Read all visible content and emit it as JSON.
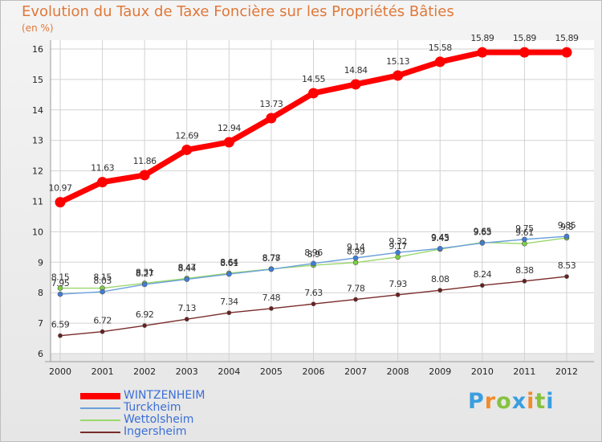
{
  "title": "Evolution du Taux de Taxe Foncière sur les Propriétés Bâties",
  "subtitle": "(en %)",
  "brand": {
    "text": "Proxiti"
  },
  "chart_data": {
    "type": "line",
    "title": "Evolution du Taux de Taxe Foncière sur les Propriétés Bâties",
    "ylabel": "(en %)",
    "xlabel": "",
    "categories": [
      "2000",
      "2001",
      "2002",
      "2003",
      "2004",
      "2005",
      "2006",
      "2007",
      "2008",
      "2009",
      "2010",
      "2011",
      "2012"
    ],
    "ylim": [
      6,
      16
    ],
    "yticks": [
      "6",
      "7",
      "8",
      "9",
      "10",
      "11",
      "12",
      "13",
      "14",
      "15",
      "16"
    ],
    "grid": true,
    "legend_position": "bottom-left",
    "series": [
      {
        "name": "WINTZENHEIM",
        "color": "#ff0000",
        "marker": "#ff0000",
        "values": [
          10.97,
          11.63,
          11.86,
          12.69,
          12.94,
          13.73,
          14.55,
          14.84,
          15.13,
          15.58,
          15.89,
          15.89,
          15.89
        ],
        "labels": [
          "10.97",
          "11.63",
          "11.86",
          "12.69",
          "12.94",
          "13.73",
          "14.55",
          "14.84",
          "15.13",
          "15.58",
          "15.89",
          "15.89",
          "15.89"
        ]
      },
      {
        "name": "Turckheim",
        "color": "#6aa0da",
        "marker": "#3d7ed8",
        "values": [
          7.95,
          8.03,
          8.27,
          8.44,
          8.61,
          8.77,
          8.96,
          9.14,
          9.32,
          9.45,
          9.63,
          9.75,
          9.85
        ],
        "labels": [
          "7.95",
          "8.03",
          "8.27",
          "8.44",
          "8.61",
          "8.77",
          "8.96",
          "9.14",
          "9.32",
          "9.45",
          "9.63",
          "9.75",
          "9.85"
        ]
      },
      {
        "name": "Wettolsheim",
        "color": "#9ad86c",
        "marker": "#7bd03c",
        "values": [
          8.15,
          8.15,
          8.31,
          8.47,
          8.64,
          8.78,
          8.9,
          8.99,
          9.17,
          9.43,
          9.65,
          9.61,
          9.8
        ],
        "labels": [
          "8.15",
          "8.15",
          "8.31",
          "8.47",
          "8.64",
          "8.78",
          "8.9",
          "8.99",
          "9.17",
          "9.43",
          "9.65",
          "9.61",
          "9.8"
        ]
      },
      {
        "name": "Ingersheim",
        "color": "#7a2a2a",
        "marker": "#6a1e1e",
        "values": [
          6.59,
          6.72,
          6.92,
          7.13,
          7.34,
          7.48,
          7.63,
          7.78,
          7.93,
          8.08,
          8.24,
          8.38,
          8.53
        ],
        "labels": [
          "6.59",
          "6.72",
          "6.92",
          "7.13",
          "7.34",
          "7.48",
          "7.63",
          "7.78",
          "7.93",
          "8.08",
          "8.24",
          "8.38",
          "8.53"
        ]
      }
    ]
  }
}
